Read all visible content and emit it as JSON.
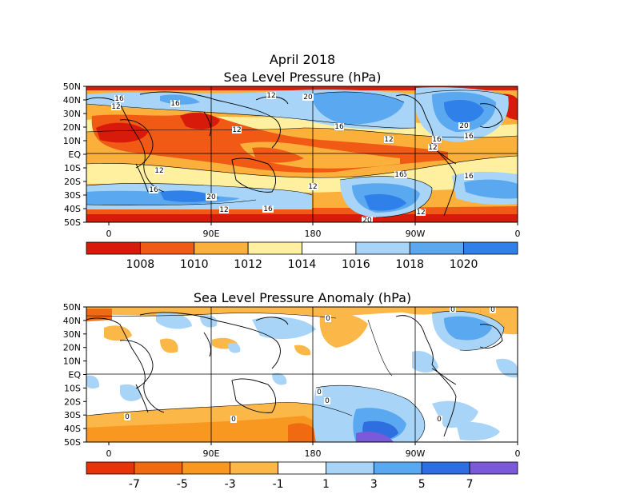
{
  "top_panel": {
    "title_line1": "April 2018",
    "title_line2": "Sea Level Pressure (hPa)",
    "lat_labels": [
      "50N",
      "40N",
      "30N",
      "20N",
      "10N",
      "EQ",
      "10S",
      "20S",
      "30S",
      "40S",
      "50S"
    ],
    "lon_labels": [
      "0",
      "90E",
      "180",
      "90W",
      "0"
    ],
    "contour_labels": [
      "12",
      "16",
      "20",
      "16",
      "12",
      "12",
      "16",
      "12",
      "20",
      "16",
      "12",
      "16",
      "16",
      "12",
      "12",
      "20",
      "16",
      "20",
      "16",
      "16",
      "12",
      "12",
      "16"
    ],
    "colorbar": {
      "colors": [
        "#d81a0a",
        "#f05a14",
        "#fab03a",
        "#fff0a0",
        "#ffffff",
        "#a8d4f8",
        "#5aa8f0",
        "#2f80e8"
      ],
      "labels": [
        "1008",
        "1010",
        "1012",
        "1014",
        "1016",
        "1018",
        "1020"
      ]
    }
  },
  "bottom_panel": {
    "title": "Sea Level Pressure Anomaly (hPa)",
    "lat_labels": [
      "50N",
      "40N",
      "30N",
      "20N",
      "10N",
      "EQ",
      "10S",
      "20S",
      "30S",
      "40S",
      "50S"
    ],
    "lon_labels": [
      "0",
      "90E",
      "180",
      "90W",
      "0"
    ],
    "contour_labels": [
      "0",
      "0",
      "0",
      "0",
      "0",
      "0",
      "0",
      "0"
    ],
    "colorbar": {
      "colors": [
        "#e8320a",
        "#f06a12",
        "#f89820",
        "#fbb848",
        "#ffffff",
        "#a8d4f8",
        "#5aa8f0",
        "#2f6ee0",
        "#7a5ad8"
      ],
      "labels": [
        "-7",
        "-5",
        "-3",
        "-1",
        "1",
        "3",
        "5",
        "7"
      ]
    }
  },
  "legend_colors": {
    "land_outline": "#000000",
    "grid": "#000000"
  }
}
